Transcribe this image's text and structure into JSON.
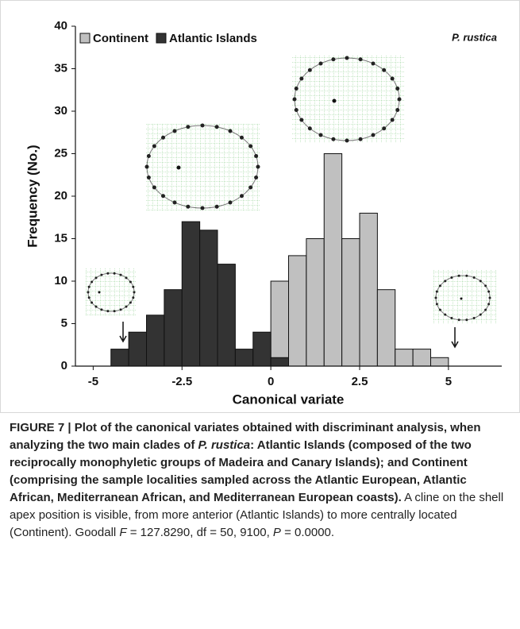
{
  "chart_data": {
    "type": "histogram",
    "xlabel": "Canonical variate",
    "ylabel": "Frequency (No.)",
    "annotation": "P. rustica",
    "bins": [
      -4.5,
      -4,
      -3.5,
      -3,
      -2.5,
      -2,
      -1.5,
      -1,
      -0.5,
      0,
      0.5,
      1,
      1.5,
      2,
      2.5,
      3,
      3.5,
      4,
      4.5,
      5
    ],
    "series": [
      {
        "name": "Continent",
        "color": "#c0c0c0",
        "values": [
          0,
          0,
          0,
          0,
          0,
          0,
          0,
          0,
          0,
          10,
          13,
          15,
          25,
          15,
          18,
          9,
          2,
          2,
          1
        ]
      },
      {
        "name": "Atlantic Islands",
        "color": "#333333",
        "values": [
          2,
          4,
          6,
          9,
          17,
          16,
          12,
          2,
          4,
          1,
          0,
          0,
          0,
          0,
          0,
          0,
          0,
          0,
          0
        ]
      }
    ],
    "xlim": [
      -5.5,
      6.5
    ],
    "xticks": [
      -5,
      -2.5,
      0,
      2.5,
      5
    ],
    "ylim": [
      0,
      40
    ],
    "yticks": [
      0,
      5,
      10,
      15,
      20,
      25,
      30,
      35,
      40
    ],
    "legend": "top-left"
  },
  "caption": [
    "FIGURE 7 | Plot of the canonical variates obtained with discriminant analysis, when analyzing the two main clades of ",
    "P. rustica",
    ": Atlantic Islands (composed of the two reciprocally monophyletic groups of Madeira and Canary Islands); and Continent (comprising the sample localities sampled across the Atlantic European, Atlantic African, Mediterranean African, and Mediterranean European coasts).",
    " A cline on the shell apex position is visible, from more anterior (Atlantic Islands) to more centrally located (Continent). Goodall ",
    "F",
    " = 127.8290, df = 50, 9100, ",
    "P",
    " = 0.0000."
  ]
}
